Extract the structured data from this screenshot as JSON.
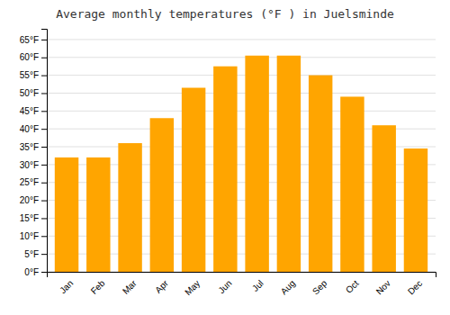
{
  "chart_data": {
    "type": "bar",
    "title": "Average monthly temperatures (°F ) in Juelsminde",
    "categories": [
      "Jan",
      "Feb",
      "Mar",
      "Apr",
      "May",
      "Jun",
      "Jul",
      "Aug",
      "Sep",
      "Oct",
      "Nov",
      "Dec"
    ],
    "values": [
      32,
      32,
      36,
      43,
      51.5,
      57.5,
      60.5,
      60.5,
      55,
      49,
      41,
      34.5
    ],
    "color": "#FFA500",
    "ylim": [
      0,
      68
    ],
    "yticks": [
      {
        "value": 0,
        "label": "0°F"
      },
      {
        "value": 5,
        "label": "5°F"
      },
      {
        "value": 10,
        "label": "10°F"
      },
      {
        "value": 15,
        "label": "15°F"
      },
      {
        "value": 20,
        "label": "20°F"
      },
      {
        "value": 25,
        "label": "25°F"
      },
      {
        "value": 30,
        "label": "30°F"
      },
      {
        "value": 35,
        "label": "35°F"
      },
      {
        "value": 40,
        "label": "40°F"
      },
      {
        "value": 45,
        "label": "45°F"
      },
      {
        "value": 50,
        "label": "50°F"
      },
      {
        "value": 55,
        "label": "55°F"
      },
      {
        "value": 60,
        "label": "60°F"
      },
      {
        "value": 65,
        "label": "65°F"
      }
    ],
    "grid": true
  }
}
